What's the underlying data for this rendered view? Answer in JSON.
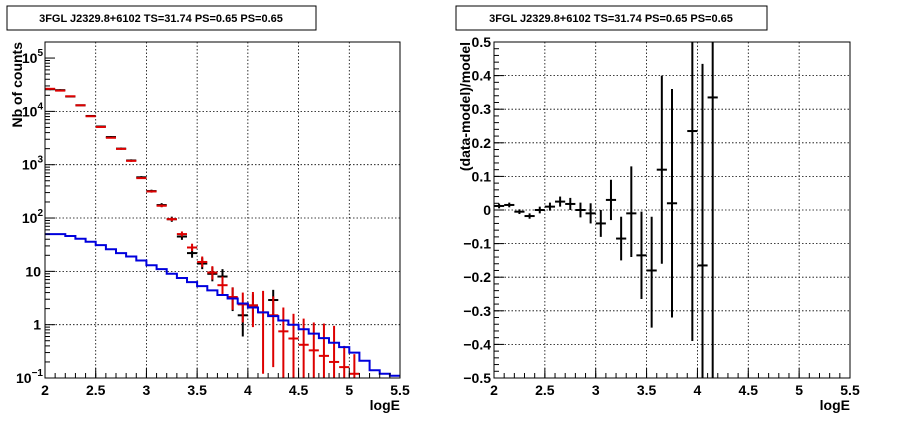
{
  "chart_data": [
    {
      "type": "line",
      "title": "3FGL J2329.8+6102 TS=31.74 PS=0.65 PS=0.65",
      "xlabel": "logE",
      "ylabel": "Nb of counts",
      "xlim": [
        2,
        5.5
      ],
      "ylim": [
        0.1,
        200000
      ],
      "yscale": "log",
      "grid": true,
      "xticks": [
        "2",
        "2.5",
        "3",
        "3.5",
        "4",
        "4.5",
        "5",
        "5.5"
      ],
      "yticks": [
        {
          "value": 0.1,
          "label": "10",
          "exp": "−1"
        },
        {
          "value": 1,
          "label": "1",
          "exp": ""
        },
        {
          "value": 10,
          "label": "10",
          "exp": ""
        },
        {
          "value": 100,
          "label": "10",
          "exp": "2"
        },
        {
          "value": 1000,
          "label": "10",
          "exp": "3"
        },
        {
          "value": 10000,
          "label": "10",
          "exp": "4"
        },
        {
          "value": 100000,
          "label": "10",
          "exp": "5"
        }
      ],
      "series": [
        {
          "kind": "errorbar",
          "color": "#000000",
          "points": [
            {
              "x": 2.05,
              "y": 26000,
              "lo": 25000,
              "hi": 27000
            },
            {
              "x": 2.15,
              "y": 25000,
              "lo": 24000,
              "hi": 26000
            },
            {
              "x": 2.25,
              "y": 19000,
              "lo": 18500,
              "hi": 19500
            },
            {
              "x": 2.35,
              "y": 13000,
              "lo": 12600,
              "hi": 13400
            },
            {
              "x": 2.45,
              "y": 8200,
              "lo": 7900,
              "hi": 8500
            },
            {
              "x": 2.55,
              "y": 5200,
              "lo": 5000,
              "hi": 5400
            },
            {
              "x": 2.65,
              "y": 3300,
              "lo": 3150,
              "hi": 3450
            },
            {
              "x": 2.75,
              "y": 2000,
              "lo": 1910,
              "hi": 2090
            },
            {
              "x": 2.85,
              "y": 1200,
              "lo": 1140,
              "hi": 1260
            },
            {
              "x": 2.95,
              "y": 580,
              "lo": 550,
              "hi": 610
            },
            {
              "x": 3.05,
              "y": 320,
              "lo": 300,
              "hi": 340
            },
            {
              "x": 3.15,
              "y": 175,
              "lo": 160,
              "hi": 190
            },
            {
              "x": 3.25,
              "y": 95,
              "lo": 85,
              "hi": 106
            },
            {
              "x": 3.35,
              "y": 45,
              "lo": 39,
              "hi": 52
            },
            {
              "x": 3.45,
              "y": 22,
              "lo": 18,
              "hi": 27
            },
            {
              "x": 3.55,
              "y": 14,
              "lo": 11,
              "hi": 18
            },
            {
              "x": 3.65,
              "y": 9,
              "lo": 6.5,
              "hi": 12
            },
            {
              "x": 3.75,
              "y": 8,
              "lo": 5.5,
              "hi": 11
            },
            {
              "x": 3.85,
              "y": 3.2,
              "lo": 1.8,
              "hi": 5
            },
            {
              "x": 3.95,
              "y": 1.5,
              "lo": 0.6,
              "hi": 2.6
            },
            {
              "x": 4.05,
              "y": 2.3,
              "lo": 1.1,
              "hi": 3.7
            },
            {
              "x": 4.25,
              "y": 2.9,
              "lo": 1.5,
              "hi": 4.5
            }
          ]
        },
        {
          "kind": "errorbar",
          "color": "#dd0000",
          "points": [
            {
              "x": 2.05,
              "y": 26500,
              "lo": 26000,
              "hi": 27000
            },
            {
              "x": 2.15,
              "y": 24500,
              "lo": 24000,
              "hi": 25000
            },
            {
              "x": 2.25,
              "y": 19200,
              "lo": 18800,
              "hi": 19600
            },
            {
              "x": 2.35,
              "y": 13000,
              "lo": 12700,
              "hi": 13300
            },
            {
              "x": 2.45,
              "y": 8100,
              "lo": 7900,
              "hi": 8300
            },
            {
              "x": 2.55,
              "y": 5100,
              "lo": 4950,
              "hi": 5250
            },
            {
              "x": 2.65,
              "y": 3200,
              "lo": 3100,
              "hi": 3300
            },
            {
              "x": 2.75,
              "y": 1980,
              "lo": 1920,
              "hi": 2040
            },
            {
              "x": 2.85,
              "y": 1180,
              "lo": 1140,
              "hi": 1220
            },
            {
              "x": 2.95,
              "y": 560,
              "lo": 540,
              "hi": 580
            },
            {
              "x": 3.05,
              "y": 315,
              "lo": 300,
              "hi": 330
            },
            {
              "x": 3.15,
              "y": 170,
              "lo": 160,
              "hi": 180
            },
            {
              "x": 3.25,
              "y": 95,
              "lo": 88,
              "hi": 102
            },
            {
              "x": 3.35,
              "y": 50,
              "lo": 45,
              "hi": 56
            },
            {
              "x": 3.45,
              "y": 28,
              "lo": 24,
              "hi": 33
            },
            {
              "x": 3.55,
              "y": 15,
              "lo": 12,
              "hi": 19
            },
            {
              "x": 3.65,
              "y": 9.5,
              "lo": 7,
              "hi": 12.5
            },
            {
              "x": 3.75,
              "y": 5.5,
              "lo": 3.5,
              "hi": 8
            },
            {
              "x": 3.85,
              "y": 3.3,
              "lo": 1.9,
              "hi": 5
            },
            {
              "x": 3.95,
              "y": 2.4,
              "lo": 1.1,
              "hi": 4
            },
            {
              "x": 4.05,
              "y": 2.3,
              "lo": 0.9,
              "hi": 4.1
            },
            {
              "x": 4.15,
              "y": 1.7,
              "lo": 0.12,
              "hi": 4.3
            },
            {
              "x": 4.25,
              "y": 1.5,
              "lo": 0.16,
              "hi": 3.4
            },
            {
              "x": 4.35,
              "y": 0.75,
              "lo": 0.1,
              "hi": 2.1
            },
            {
              "x": 4.45,
              "y": 0.55,
              "lo": 0.1,
              "hi": 1.6
            },
            {
              "x": 4.55,
              "y": 0.42,
              "lo": 0.1,
              "hi": 1.3
            },
            {
              "x": 4.65,
              "y": 0.33,
              "lo": 0.1,
              "hi": 1.1
            },
            {
              "x": 4.75,
              "y": 0.26,
              "lo": 0.1,
              "hi": 1.05
            },
            {
              "x": 4.85,
              "y": 0.2,
              "lo": 0.1,
              "hi": 0.95
            },
            {
              "x": 4.95,
              "y": 0.16,
              "lo": 0.1,
              "hi": 0.4
            },
            {
              "x": 5.05,
              "y": 0.12,
              "lo": 0.1,
              "hi": 0.28
            }
          ]
        },
        {
          "kind": "step",
          "color": "#0000dd",
          "x": [
            2.0,
            2.1,
            2.2,
            2.3,
            2.4,
            2.5,
            2.6,
            2.7,
            2.8,
            2.9,
            3.0,
            3.1,
            3.2,
            3.3,
            3.4,
            3.5,
            3.6,
            3.7,
            3.8,
            3.9,
            4.0,
            4.1,
            4.2,
            4.3,
            4.4,
            4.5,
            4.6,
            4.7,
            4.8,
            4.9,
            5.0,
            5.1,
            5.2,
            5.3,
            5.4
          ],
          "values": [
            50,
            50,
            46,
            41,
            36,
            31,
            26,
            22,
            19,
            16,
            13,
            11,
            9,
            7.5,
            6.3,
            5.3,
            4.4,
            3.6,
            3.1,
            2.5,
            2.1,
            1.7,
            1.45,
            1.2,
            1.0,
            0.82,
            0.68,
            0.56,
            0.46,
            0.38,
            0.3,
            0.21,
            0.14,
            0.12,
            0.11
          ]
        }
      ]
    },
    {
      "type": "scatter",
      "title": "3FGL J2329.8+6102 TS=31.74 PS=0.65 PS=0.65",
      "xlabel": "logE",
      "ylabel": "(data-model)/model",
      "xlim": [
        2,
        5.5
      ],
      "ylim": [
        -0.5,
        0.5
      ],
      "grid": true,
      "xticks": [
        "2",
        "2.5",
        "3",
        "3.5",
        "4",
        "4.5",
        "5",
        "5.5"
      ],
      "yticks": [
        "−0.5",
        "−0.4",
        "−0.3",
        "−0.2",
        "−0.1",
        "0",
        "0.1",
        "0.2",
        "0.3",
        "0.4",
        "0.5"
      ],
      "series": [
        {
          "kind": "errorbar",
          "color": "#000000",
          "points": [
            {
              "x": 2.05,
              "y": 0.012,
              "lo": 0.005,
              "hi": 0.019
            },
            {
              "x": 2.15,
              "y": 0.015,
              "lo": 0.008,
              "hi": 0.022
            },
            {
              "x": 2.25,
              "y": -0.005,
              "lo": -0.012,
              "hi": 0.002
            },
            {
              "x": 2.35,
              "y": -0.018,
              "lo": -0.026,
              "hi": -0.01
            },
            {
              "x": 2.45,
              "y": 0.0,
              "lo": -0.01,
              "hi": 0.01
            },
            {
              "x": 2.55,
              "y": 0.01,
              "lo": -0.002,
              "hi": 0.022
            },
            {
              "x": 2.65,
              "y": 0.025,
              "lo": 0.01,
              "hi": 0.04
            },
            {
              "x": 2.75,
              "y": 0.018,
              "lo": 0.0,
              "hi": 0.036
            },
            {
              "x": 2.85,
              "y": 0.0,
              "lo": -0.022,
              "hi": 0.022
            },
            {
              "x": 2.95,
              "y": -0.01,
              "lo": -0.04,
              "hi": 0.02
            },
            {
              "x": 3.05,
              "y": -0.04,
              "lo": -0.08,
              "hi": 0.0
            },
            {
              "x": 3.15,
              "y": 0.03,
              "lo": -0.03,
              "hi": 0.09
            },
            {
              "x": 3.25,
              "y": -0.085,
              "lo": -0.15,
              "hi": -0.02
            },
            {
              "x": 3.35,
              "y": -0.01,
              "lo": -0.14,
              "hi": 0.13
            },
            {
              "x": 3.45,
              "y": -0.135,
              "lo": -0.265,
              "hi": -0.005
            },
            {
              "x": 3.55,
              "y": -0.18,
              "lo": -0.35,
              "hi": -0.02
            },
            {
              "x": 3.65,
              "y": 0.12,
              "lo": -0.16,
              "hi": 0.4
            },
            {
              "x": 3.75,
              "y": 0.02,
              "lo": -0.32,
              "hi": 0.36
            },
            {
              "x": 3.95,
              "y": 0.235,
              "lo": -0.39,
              "hi": 0.5
            },
            {
              "x": 4.05,
              "y": -0.165,
              "lo": -0.5,
              "hi": 0.435
            },
            {
              "x": 4.15,
              "y": 0.335,
              "lo": -0.5,
              "hi": 0.5
            }
          ]
        }
      ]
    }
  ]
}
